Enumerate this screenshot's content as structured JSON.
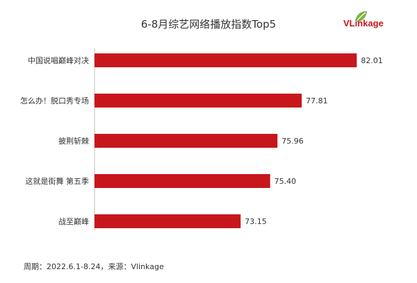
{
  "brand": {
    "logo_text": "VLinkage",
    "accent": "#c8161d",
    "leaf_color": "#7cb342"
  },
  "footer": {
    "note": "周期：2022.6.1-8.24，来源：Vlinkage"
  },
  "chart_data": {
    "type": "bar",
    "orientation": "horizontal",
    "title": "6-8月综艺网络播放指数Top5",
    "categories": [
      "中国说唱巅峰对决",
      "怎么办！脱口秀专场",
      "披荆斩棘",
      "这就是街舞 第五季",
      "战至巅峰"
    ],
    "values": [
      82.01,
      77.81,
      75.96,
      75.4,
      73.15
    ],
    "value_labels": [
      "82.01",
      "77.81",
      "75.96",
      "75.40",
      "73.15"
    ],
    "bar_color": "#c8161d",
    "xlim": [
      62,
      83
    ],
    "grid": false,
    "legend": "none"
  }
}
